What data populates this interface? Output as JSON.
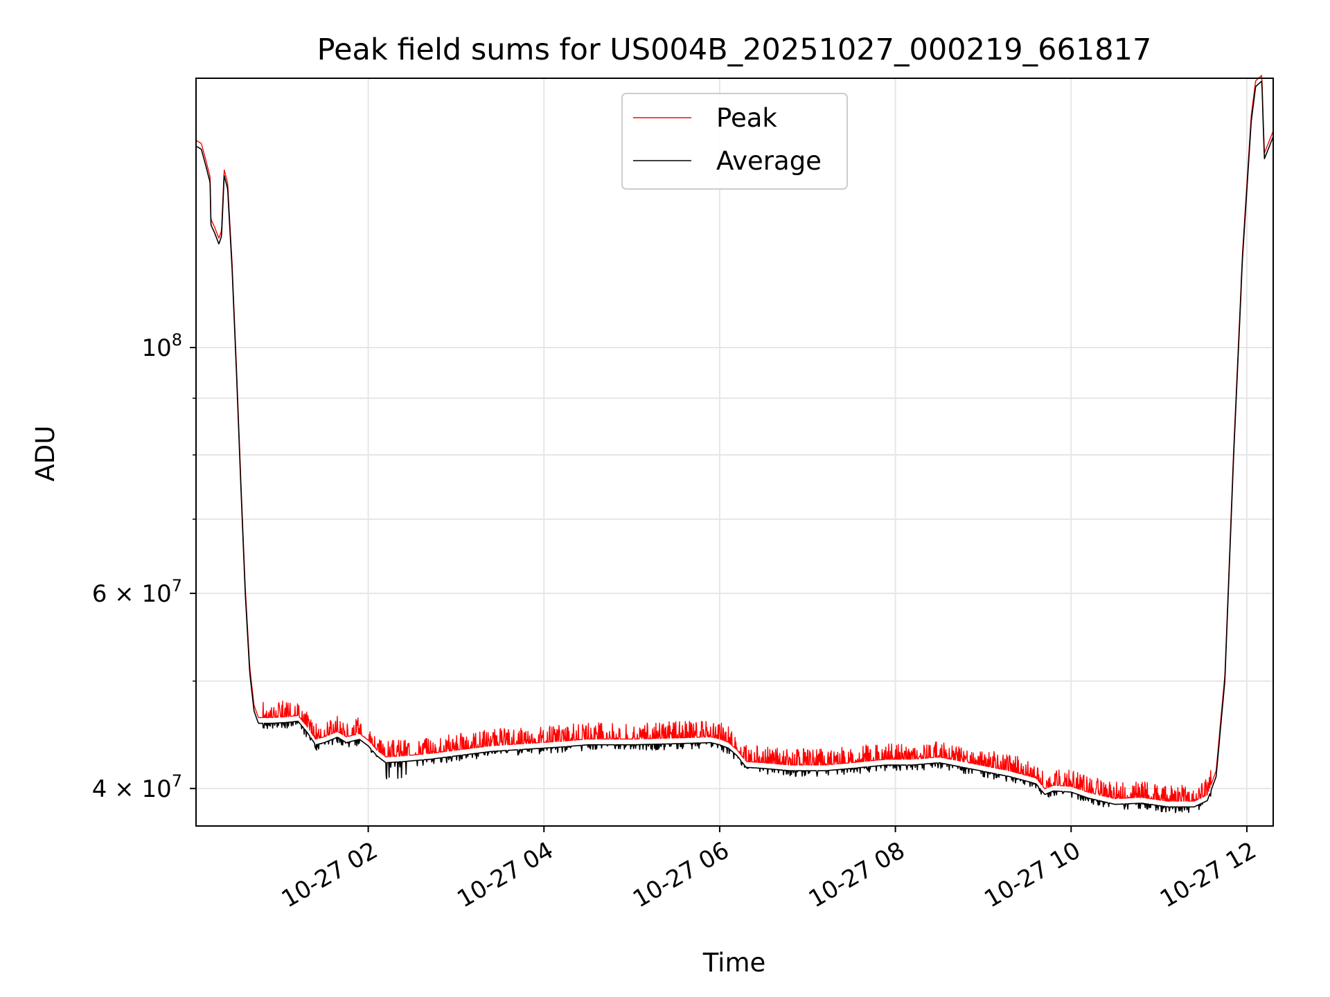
{
  "chart_data": {
    "type": "line",
    "title": "Peak field sums for US004B_20251027_000219_661817",
    "xlabel": "Time",
    "ylabel": "ADU",
    "yscale": "log",
    "grid": true,
    "legend_position": "top-center",
    "xlim_hours": [
      0.04,
      12.3
    ],
    "ylim": [
      37000000,
      175000000
    ],
    "x_ticks": [
      {
        "hours": 2,
        "label": "10-27 02"
      },
      {
        "hours": 4,
        "label": "10-27 04"
      },
      {
        "hours": 6,
        "label": "10-27 06"
      },
      {
        "hours": 8,
        "label": "10-27 08"
      },
      {
        "hours": 10,
        "label": "10-27 10"
      },
      {
        "hours": 12,
        "label": "10-27 12"
      }
    ],
    "y_ticks": [
      {
        "value": 40000000,
        "base": "4 × 10",
        "exp": "7"
      },
      {
        "value": 60000000,
        "base": "6 × 10",
        "exp": "7"
      },
      {
        "value": 100000000,
        "base": "10",
        "exp": "8"
      }
    ],
    "y_minor_ticks": [
      50000000,
      70000000,
      80000000,
      90000000
    ],
    "series": [
      {
        "name": "Peak",
        "color": "#ff0000",
        "noise": "spiky-up",
        "points": [
          [
            0.04,
            152000000
          ],
          [
            0.1,
            151000000
          ],
          [
            0.15,
            146000000
          ],
          [
            0.2,
            141000000
          ],
          [
            0.21,
            129000000
          ],
          [
            0.25,
            127000000
          ],
          [
            0.3,
            124000000
          ],
          [
            0.33,
            126000000
          ],
          [
            0.36,
            143000000
          ],
          [
            0.4,
            139000000
          ],
          [
            0.45,
            118000000
          ],
          [
            0.5,
            95000000
          ],
          [
            0.55,
            75000000
          ],
          [
            0.6,
            60000000
          ],
          [
            0.65,
            51000000
          ],
          [
            0.7,
            47000000
          ],
          [
            0.75,
            45800000
          ],
          [
            0.9,
            45800000
          ],
          [
            1.1,
            45900000
          ],
          [
            1.2,
            46000000
          ],
          [
            1.3,
            45000000
          ],
          [
            1.4,
            43800000
          ],
          [
            1.5,
            44000000
          ],
          [
            1.65,
            44500000
          ],
          [
            1.75,
            44000000
          ],
          [
            1.9,
            44300000
          ],
          [
            2.0,
            43700000
          ],
          [
            2.1,
            42800000
          ],
          [
            2.2,
            42200000
          ],
          [
            2.4,
            42300000
          ],
          [
            2.7,
            42500000
          ],
          [
            3.0,
            42800000
          ],
          [
            3.4,
            43200000
          ],
          [
            3.8,
            43400000
          ],
          [
            4.2,
            43600000
          ],
          [
            4.5,
            43800000
          ],
          [
            5.0,
            43800000
          ],
          [
            5.5,
            43900000
          ],
          [
            5.9,
            44000000
          ],
          [
            6.0,
            43800000
          ],
          [
            6.1,
            43500000
          ],
          [
            6.2,
            42800000
          ],
          [
            6.3,
            41800000
          ],
          [
            6.5,
            41700000
          ],
          [
            6.8,
            41500000
          ],
          [
            7.2,
            41500000
          ],
          [
            7.5,
            41700000
          ],
          [
            7.9,
            42000000
          ],
          [
            8.2,
            42000000
          ],
          [
            8.5,
            42200000
          ],
          [
            8.9,
            41600000
          ],
          [
            9.3,
            41000000
          ],
          [
            9.6,
            40400000
          ],
          [
            9.7,
            39500000
          ],
          [
            9.8,
            39800000
          ],
          [
            10.0,
            39700000
          ],
          [
            10.2,
            39200000
          ],
          [
            10.5,
            38700000
          ],
          [
            10.8,
            38800000
          ],
          [
            11.1,
            38500000
          ],
          [
            11.4,
            38500000
          ],
          [
            11.55,
            39000000
          ],
          [
            11.65,
            41000000
          ],
          [
            11.75,
            50000000
          ],
          [
            11.85,
            80000000
          ],
          [
            11.95,
            120000000
          ],
          [
            12.05,
            160000000
          ],
          [
            12.1,
            172000000
          ],
          [
            12.17,
            174000000
          ],
          [
            12.2,
            148000000
          ],
          [
            12.3,
            155000000
          ]
        ]
      },
      {
        "name": "Average",
        "color": "#000000",
        "noise": "small-down",
        "points": [
          [
            0.04,
            152000000
          ],
          [
            0.1,
            151000000
          ],
          [
            0.15,
            146000000
          ],
          [
            0.2,
            141000000
          ],
          [
            0.21,
            129000000
          ],
          [
            0.25,
            127000000
          ],
          [
            0.3,
            124000000
          ],
          [
            0.33,
            126000000
          ],
          [
            0.36,
            143000000
          ],
          [
            0.4,
            139000000
          ],
          [
            0.45,
            118000000
          ],
          [
            0.5,
            95000000
          ],
          [
            0.55,
            75000000
          ],
          [
            0.6,
            60000000
          ],
          [
            0.65,
            51000000
          ],
          [
            0.7,
            47000000
          ],
          [
            0.75,
            45800000
          ],
          [
            0.9,
            45800000
          ],
          [
            1.1,
            45900000
          ],
          [
            1.2,
            46000000
          ],
          [
            1.3,
            45000000
          ],
          [
            1.4,
            43800000
          ],
          [
            1.5,
            44000000
          ],
          [
            1.65,
            44500000
          ],
          [
            1.75,
            44000000
          ],
          [
            1.9,
            44300000
          ],
          [
            2.0,
            43700000
          ],
          [
            2.1,
            42800000
          ],
          [
            2.2,
            42200000
          ],
          [
            2.4,
            42300000
          ],
          [
            2.7,
            42500000
          ],
          [
            3.0,
            42800000
          ],
          [
            3.4,
            43200000
          ],
          [
            3.8,
            43400000
          ],
          [
            4.2,
            43600000
          ],
          [
            4.5,
            43800000
          ],
          [
            5.0,
            43800000
          ],
          [
            5.5,
            43900000
          ],
          [
            5.9,
            44000000
          ],
          [
            6.0,
            43800000
          ],
          [
            6.1,
            43500000
          ],
          [
            6.2,
            42800000
          ],
          [
            6.3,
            41800000
          ],
          [
            6.5,
            41700000
          ],
          [
            6.8,
            41500000
          ],
          [
            7.2,
            41500000
          ],
          [
            7.5,
            41700000
          ],
          [
            7.9,
            42000000
          ],
          [
            8.2,
            42000000
          ],
          [
            8.5,
            42200000
          ],
          [
            8.9,
            41600000
          ],
          [
            9.3,
            41000000
          ],
          [
            9.6,
            40400000
          ],
          [
            9.7,
            39500000
          ],
          [
            9.8,
            39800000
          ],
          [
            10.0,
            39700000
          ],
          [
            10.2,
            39200000
          ],
          [
            10.5,
            38700000
          ],
          [
            10.8,
            38800000
          ],
          [
            11.1,
            38500000
          ],
          [
            11.4,
            38500000
          ],
          [
            11.55,
            39000000
          ],
          [
            11.65,
            41000000
          ],
          [
            11.75,
            50000000
          ],
          [
            11.85,
            80000000
          ],
          [
            11.95,
            120000000
          ],
          [
            12.05,
            160000000
          ],
          [
            12.1,
            172000000
          ],
          [
            12.17,
            174000000
          ],
          [
            12.2,
            148000000
          ],
          [
            12.3,
            155000000
          ]
        ]
      }
    ]
  }
}
